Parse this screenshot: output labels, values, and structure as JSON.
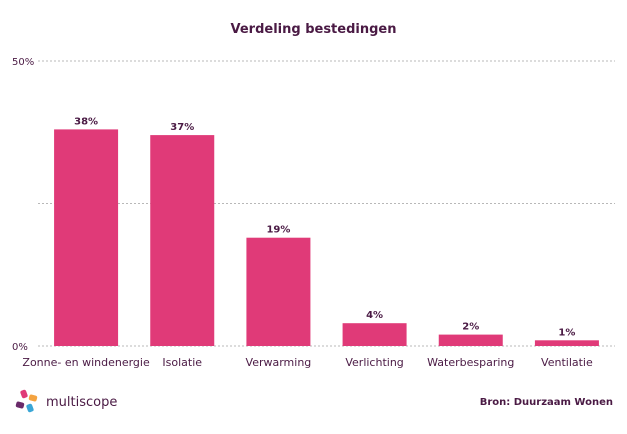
{
  "chart_data": {
    "type": "bar",
    "title": "Verdeling bestedingen",
    "categories": [
      "Zonne- en windenergie",
      "Isolatie",
      "Verwarming",
      "Verlichting",
      "Waterbesparing",
      "Ventilatie"
    ],
    "values": [
      38,
      37,
      19,
      4,
      2,
      1
    ],
    "data_labels": [
      "38%",
      "37%",
      "19%",
      "4%",
      "2%",
      "1%"
    ],
    "ylim": [
      0,
      50
    ],
    "ytick_labels": [
      "50%",
      "0%"
    ],
    "grid": true,
    "bar_color": "#e03a78",
    "text_color": "#4a1a44"
  },
  "footer": {
    "brand": "multiscope",
    "source": "Bron: Duurzaam Wonen"
  }
}
